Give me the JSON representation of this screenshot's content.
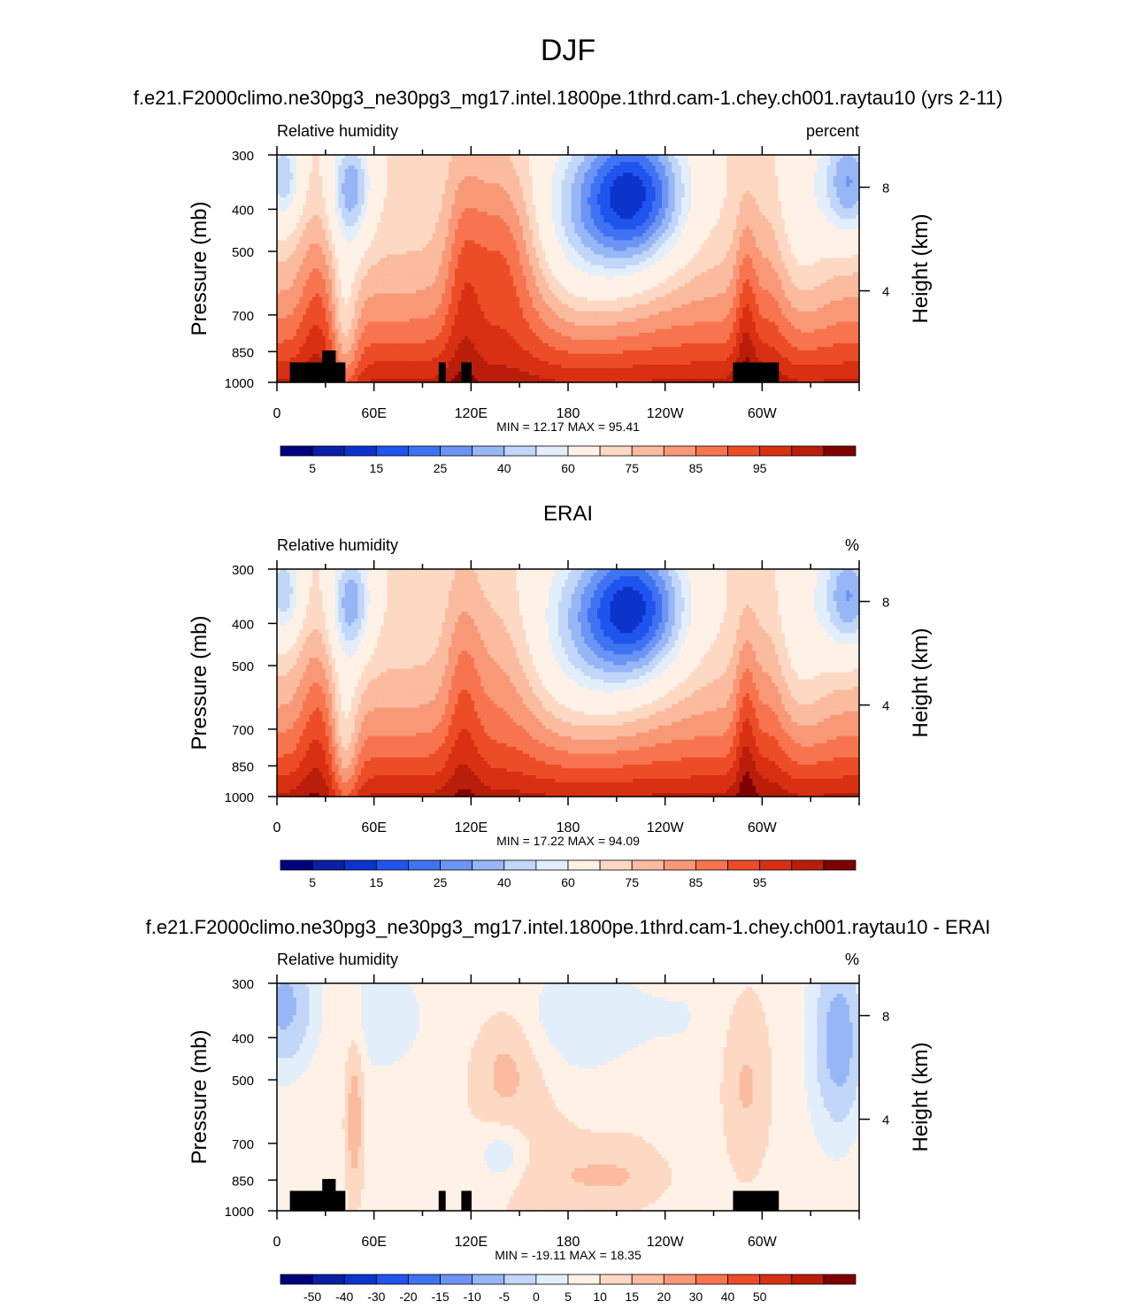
{
  "main_title": "DJF",
  "colors": {
    "rh_levels": [
      "#00007f",
      "#0a1fa3",
      "#0c34cc",
      "#1f55ee",
      "#3f73f2",
      "#6b94f5",
      "#97b6f6",
      "#c1d6f8",
      "#e3eefb",
      "#fff1e6",
      "#fdd9c4",
      "#fbbb9f",
      "#f99877",
      "#f7744f",
      "#ec4c26",
      "#d93013",
      "#b91e0b",
      "#7f0000"
    ],
    "land": "#000000"
  },
  "chart_data": [
    {
      "type": "heatmap",
      "title": "f.e21.F2000climo.ne30pg3_ne30pg3_mg17.intel.1800pe.1thrd.cam-1.chey.ch001.raytau10 (yrs 2-11)",
      "left_label": "Relative humidity",
      "right_label": "percent",
      "ylabel": "Pressure (mb)",
      "ylabel_right": "Height (km)",
      "x_ticks": [
        "0",
        "60E",
        "120E",
        "180",
        "120W",
        "60W"
      ],
      "y_ticks": [
        "300",
        "400",
        "500",
        "700",
        "850",
        "1000"
      ],
      "y_right_ticks": [
        "8",
        "4"
      ],
      "stats": "MIN =  12.17  MAX =  95.41",
      "colorbar_labels": [
        "5",
        "15",
        "25",
        "40",
        "60",
        "75",
        "85",
        "95"
      ],
      "topography": true
    },
    {
      "type": "heatmap",
      "title": "ERAI",
      "left_label": "Relative humidity",
      "right_label": "%",
      "ylabel": "Pressure (mb)",
      "ylabel_right": "Height (km)",
      "x_ticks": [
        "0",
        "60E",
        "120E",
        "180",
        "120W",
        "60W"
      ],
      "y_ticks": [
        "300",
        "400",
        "500",
        "700",
        "850",
        "1000"
      ],
      "y_right_ticks": [
        "8",
        "4"
      ],
      "stats": "MIN =  17.22  MAX =  94.09",
      "colorbar_labels": [
        "5",
        "15",
        "25",
        "40",
        "60",
        "75",
        "85",
        "95"
      ],
      "topography": false
    },
    {
      "type": "heatmap",
      "title": "f.e21.F2000climo.ne30pg3_ne30pg3_mg17.intel.1800pe.1thrd.cam-1.chey.ch001.raytau10 - ERAI",
      "left_label": "Relative humidity",
      "right_label": "%",
      "ylabel": "Pressure (mb)",
      "ylabel_right": "Height (km)",
      "x_ticks": [
        "0",
        "60E",
        "120E",
        "180",
        "120W",
        "60W"
      ],
      "y_ticks": [
        "300",
        "400",
        "500",
        "700",
        "850",
        "1000"
      ],
      "y_right_ticks": [
        "8",
        "4"
      ],
      "stats": "MIN = -19.11  MAX =  18.35",
      "colorbar_labels": [
        "-50",
        "-40",
        "-30",
        "-20",
        "-15",
        "-10",
        "-5",
        "0",
        "5",
        "10",
        "15",
        "20",
        "30",
        "40",
        "50"
      ],
      "topography": true
    }
  ]
}
